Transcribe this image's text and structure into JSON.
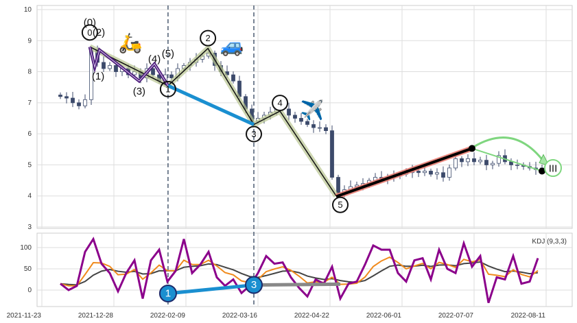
{
  "chart_data": [
    {
      "type": "candlestick",
      "title": "",
      "ylim": [
        3,
        10
      ],
      "yticks": [
        3,
        4,
        5,
        6,
        7,
        8,
        9,
        10
      ],
      "grid": true,
      "x_start_date": "2021-11-23",
      "close_series": {
        "start_day": 9,
        "step_days": 3,
        "values": [
          7.2,
          7.15,
          7.0,
          6.9,
          7.1,
          8.7,
          8.3,
          8.1,
          8.2,
          8.0,
          8.1,
          7.9,
          8.0,
          7.8,
          8.1,
          7.9,
          7.7,
          7.9,
          7.8,
          8.1,
          8.2,
          8.3,
          8.4,
          8.5,
          8.6,
          8.2,
          8.0,
          7.9,
          7.7,
          7.2,
          6.8,
          6.4,
          6.5,
          6.6,
          6.7,
          6.8,
          6.8,
          6.6,
          6.5,
          6.4,
          6.3,
          6.2,
          6.2,
          6.1,
          4.6,
          4.1,
          4.2,
          4.3,
          4.35,
          4.4,
          4.5,
          4.6,
          4.55,
          4.6,
          4.65,
          4.7,
          4.75,
          4.8,
          4.75,
          4.8,
          4.7,
          4.75,
          4.6,
          4.9,
          5.2,
          5.1,
          5.2,
          5.1,
          5.15,
          5.0,
          5.05,
          5.3,
          5.1,
          5.0,
          5.0,
          4.95,
          4.9,
          4.85,
          4.9
        ]
      },
      "main_wave": {
        "points": [
          [
            23.3,
            8.8
          ],
          [
            61.3,
            7.55
          ],
          [
            80.7,
            8.75
          ],
          [
            103,
            6.3
          ],
          [
            115.7,
            6.73
          ],
          [
            143,
            4.0
          ]
        ],
        "labels": [
          "0",
          "1",
          "2",
          "3",
          "4",
          "5"
        ]
      },
      "sub_wave": {
        "points": [
          [
            23.3,
            8.8
          ],
          [
            25.7,
            8.15
          ],
          [
            28,
            8.7
          ],
          [
            47.3,
            7.7
          ],
          [
            54.7,
            8.25
          ],
          [
            61.3,
            7.55
          ]
        ],
        "labels": [
          "(0)",
          "(1)",
          "(2)",
          "(3)",
          "(4)",
          "(5)"
        ]
      },
      "blue_segment": [
        [
          61.3,
          7.55
        ],
        [
          103,
          6.3
        ]
      ],
      "red_segment": [
        [
          143,
          3.98
        ],
        [
          209,
          5.53
        ]
      ],
      "green_segment": [
        [
          209,
          5.53
        ],
        [
          243,
          4.8
        ]
      ],
      "green_label": "III",
      "emoji": {
        "scooter": "🛵",
        "car": "🚙",
        "airplane": "✈️"
      },
      "vlines_days": [
        61.3,
        103
      ]
    },
    {
      "type": "line",
      "legend_text": "KDJ (9,3,3)",
      "ylim": [
        -40,
        135
      ],
      "yticks": [
        0,
        50,
        100
      ],
      "xticks": [
        "2021-11-23",
        "2021-12-28",
        "2022-02-09",
        "2022-03-16",
        "2022-04-22",
        "2022-06-01",
        "2022-07-07",
        "2022-08-11"
      ],
      "xtick_days": [
        0,
        35,
        70,
        105,
        140,
        175,
        210,
        245
      ],
      "J": {
        "start_day": 9,
        "step_days": 4,
        "color": "#8b008b",
        "values": [
          15,
          0,
          10,
          90,
          120,
          62,
          40,
          -3,
          40,
          70,
          -20,
          70,
          95,
          20,
          45,
          120,
          40,
          60,
          90,
          30,
          10,
          25,
          -7,
          10,
          40,
          80,
          62,
          65,
          30,
          5,
          -15,
          25,
          15,
          55,
          -20,
          15,
          20,
          60,
          105,
          95,
          95,
          40,
          20,
          70,
          75,
          25,
          95,
          50,
          40,
          110,
          55,
          80,
          -30,
          30,
          25,
          80,
          15,
          20,
          75
        ]
      },
      "K_color": "#f08a1c",
      "D_color": "#444444",
      "annotations": {
        "seg1": {
          "points": [
            [
              61.3,
              -8
            ],
            [
              103,
              12
            ]
          ],
          "labels": [
            "1",
            "3"
          ],
          "color": "#1a8fd0"
        },
        "seg2": {
          "points": [
            [
              103,
              12
            ],
            [
              145,
              14
            ]
          ],
          "color": "#888888"
        }
      }
    }
  ]
}
